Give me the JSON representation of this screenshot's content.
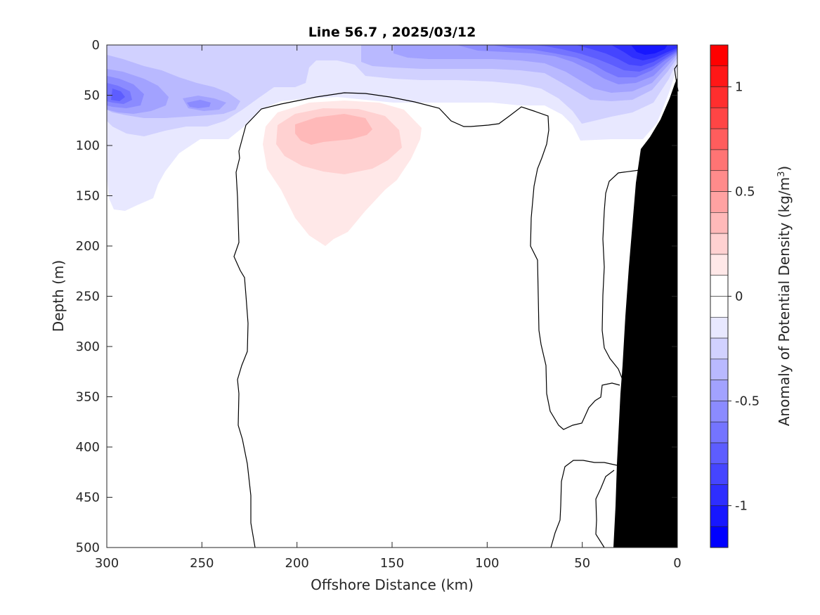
{
  "chart_data": {
    "type": "contour",
    "title": "Line 56.7 , 2025/03/12",
    "xlabel": "Offshore Distance (km)",
    "ylabel": "Depth (m)",
    "xlim": [
      300,
      0
    ],
    "ylim": [
      0,
      500
    ],
    "y_reversed": true,
    "x_ticks": [
      300,
      250,
      200,
      150,
      100,
      50,
      0
    ],
    "y_ticks": [
      0,
      50,
      100,
      150,
      200,
      250,
      300,
      350,
      400,
      450,
      500
    ],
    "zero_contour_drawn": true,
    "features": [
      {
        "name": "positive anomaly core",
        "sign": "positive",
        "level": 0.3,
        "center_km": 175,
        "center_depth_m": 90
      },
      {
        "name": "negative near-shore surface anomaly",
        "sign": "negative",
        "level": -1.0,
        "center_km": 20,
        "center_depth_m": 10
      },
      {
        "name": "negative offshore subsurface anomaly",
        "sign": "negative",
        "level": -0.5,
        "center_km": 290,
        "center_depth_m": 50
      }
    ],
    "bathymetry_color": "#000000",
    "colorbar": {
      "label_main": "Anomaly of Potential Density (kg/m",
      "label_sup": "3",
      "label_end": ")",
      "range": [
        -1.2,
        1.2
      ],
      "ticks": [
        1,
        0.5,
        0,
        -0.5,
        -1
      ],
      "tick_labels": [
        "1",
        "0.5",
        "0",
        "-0.5",
        "-1"
      ],
      "levels": [
        {
          "lo": 1.1,
          "hi": 1.2,
          "color": "#ff0000"
        },
        {
          "lo": 1.0,
          "hi": 1.1,
          "color": "#ff1717"
        },
        {
          "lo": 0.9,
          "hi": 1.0,
          "color": "#ff2e2e"
        },
        {
          "lo": 0.8,
          "hi": 0.9,
          "color": "#ff4545"
        },
        {
          "lo": 0.7,
          "hi": 0.8,
          "color": "#ff5d5d"
        },
        {
          "lo": 0.6,
          "hi": 0.7,
          "color": "#ff7474"
        },
        {
          "lo": 0.5,
          "hi": 0.6,
          "color": "#ff8b8b"
        },
        {
          "lo": 0.4,
          "hi": 0.5,
          "color": "#ffa2a2"
        },
        {
          "lo": 0.3,
          "hi": 0.4,
          "color": "#ffb9b9"
        },
        {
          "lo": 0.2,
          "hi": 0.3,
          "color": "#ffd1d1"
        },
        {
          "lo": 0.1,
          "hi": 0.2,
          "color": "#ffe8e8"
        },
        {
          "lo": 0.0,
          "hi": 0.1,
          "color": "#ffffff"
        },
        {
          "lo": -0.1,
          "hi": 0.0,
          "color": "#ffffff"
        },
        {
          "lo": -0.2,
          "hi": -0.1,
          "color": "#e8e8ff"
        },
        {
          "lo": -0.3,
          "hi": -0.2,
          "color": "#d1d1ff"
        },
        {
          "lo": -0.4,
          "hi": -0.3,
          "color": "#b9b9ff"
        },
        {
          "lo": -0.5,
          "hi": -0.4,
          "color": "#a2a2ff"
        },
        {
          "lo": -0.6,
          "hi": -0.5,
          "color": "#8b8bff"
        },
        {
          "lo": -0.7,
          "hi": -0.6,
          "color": "#7474ff"
        },
        {
          "lo": -0.8,
          "hi": -0.7,
          "color": "#5d5dff"
        },
        {
          "lo": -0.9,
          "hi": -0.8,
          "color": "#4545ff"
        },
        {
          "lo": -1.0,
          "hi": -0.9,
          "color": "#2e2eff"
        },
        {
          "lo": -1.1,
          "hi": -1.0,
          "color": "#1717ff"
        },
        {
          "lo": -1.2,
          "hi": -1.1,
          "color": "#0000ff"
        }
      ]
    }
  }
}
